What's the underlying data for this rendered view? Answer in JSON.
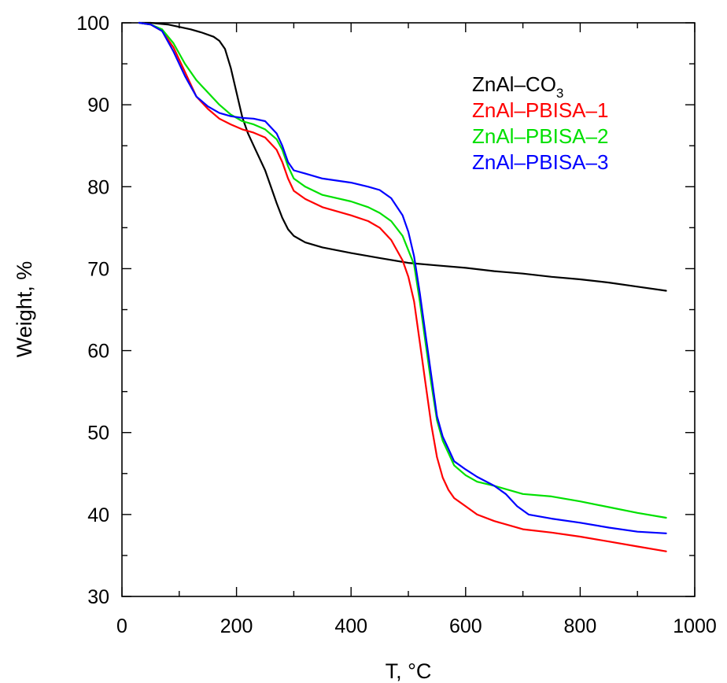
{
  "chart_data": {
    "type": "line",
    "title": "",
    "xlabel": "T, °C",
    "ylabel": "Weight, %",
    "xlim": [
      0,
      1000
    ],
    "ylim": [
      30,
      100
    ],
    "x_ticks": [
      0,
      200,
      400,
      600,
      800,
      1000
    ],
    "y_ticks": [
      30,
      40,
      50,
      60,
      70,
      80,
      90,
      100
    ],
    "x_tick_labels": [
      "0",
      "200",
      "400",
      "600",
      "800",
      "1000"
    ],
    "y_tick_labels": [
      "30",
      "40",
      "50",
      "60",
      "70",
      "80",
      "90",
      "100"
    ],
    "grid": false,
    "legend_position": "top-right",
    "series": [
      {
        "name": "ZnAl–CO3",
        "legend_main": "ZnAl–CO",
        "legend_sub": "3",
        "color": "#000000",
        "points": [
          [
            30,
            100
          ],
          [
            50,
            100
          ],
          [
            80,
            99.8
          ],
          [
            100,
            99.5
          ],
          [
            120,
            99.2
          ],
          [
            140,
            98.8
          ],
          [
            160,
            98.3
          ],
          [
            170,
            97.8
          ],
          [
            180,
            96.8
          ],
          [
            190,
            94.5
          ],
          [
            200,
            91.5
          ],
          [
            210,
            88.5
          ],
          [
            220,
            86.5
          ],
          [
            230,
            85
          ],
          [
            240,
            83.5
          ],
          [
            250,
            82
          ],
          [
            260,
            80
          ],
          [
            270,
            78
          ],
          [
            280,
            76.2
          ],
          [
            290,
            74.8
          ],
          [
            300,
            74
          ],
          [
            320,
            73.2
          ],
          [
            350,
            72.6
          ],
          [
            400,
            71.9
          ],
          [
            450,
            71.3
          ],
          [
            500,
            70.7
          ],
          [
            550,
            70.4
          ],
          [
            600,
            70.1
          ],
          [
            650,
            69.7
          ],
          [
            700,
            69.4
          ],
          [
            750,
            69
          ],
          [
            800,
            68.7
          ],
          [
            850,
            68.3
          ],
          [
            900,
            67.8
          ],
          [
            950,
            67.3
          ]
        ]
      },
      {
        "name": "ZnAl–PBISA–1",
        "color": "#ff0000",
        "points": [
          [
            30,
            100
          ],
          [
            50,
            99.8
          ],
          [
            70,
            99
          ],
          [
            90,
            97
          ],
          [
            110,
            94
          ],
          [
            130,
            91
          ],
          [
            150,
            89.5
          ],
          [
            170,
            88.3
          ],
          [
            190,
            87.6
          ],
          [
            210,
            87
          ],
          [
            230,
            86.6
          ],
          [
            250,
            86
          ],
          [
            270,
            84.5
          ],
          [
            280,
            83
          ],
          [
            290,
            81
          ],
          [
            300,
            79.5
          ],
          [
            320,
            78.5
          ],
          [
            350,
            77.5
          ],
          [
            400,
            76.5
          ],
          [
            430,
            75.8
          ],
          [
            450,
            75
          ],
          [
            470,
            73.5
          ],
          [
            490,
            71
          ],
          [
            500,
            69
          ],
          [
            510,
            66
          ],
          [
            520,
            61
          ],
          [
            530,
            56
          ],
          [
            540,
            51
          ],
          [
            550,
            47
          ],
          [
            560,
            44.5
          ],
          [
            570,
            43
          ],
          [
            580,
            42
          ],
          [
            600,
            41
          ],
          [
            620,
            40
          ],
          [
            650,
            39.2
          ],
          [
            700,
            38.2
          ],
          [
            750,
            37.8
          ],
          [
            800,
            37.3
          ],
          [
            850,
            36.7
          ],
          [
            900,
            36.1
          ],
          [
            950,
            35.5
          ]
        ]
      },
      {
        "name": "ZnAl–PBISA–2",
        "color": "#00e000",
        "points": [
          [
            30,
            100
          ],
          [
            50,
            99.8
          ],
          [
            70,
            99.2
          ],
          [
            90,
            97.5
          ],
          [
            110,
            95
          ],
          [
            130,
            93
          ],
          [
            150,
            91.5
          ],
          [
            170,
            90
          ],
          [
            190,
            88.8
          ],
          [
            210,
            88
          ],
          [
            230,
            87.6
          ],
          [
            250,
            87
          ],
          [
            270,
            85.8
          ],
          [
            280,
            84.5
          ],
          [
            290,
            82.5
          ],
          [
            300,
            81
          ],
          [
            320,
            80
          ],
          [
            350,
            79
          ],
          [
            400,
            78.2
          ],
          [
            430,
            77.5
          ],
          [
            450,
            76.8
          ],
          [
            470,
            75.8
          ],
          [
            490,
            74
          ],
          [
            510,
            70.5
          ],
          [
            520,
            66
          ],
          [
            530,
            61
          ],
          [
            540,
            56
          ],
          [
            550,
            51.5
          ],
          [
            560,
            49
          ],
          [
            570,
            47.5
          ],
          [
            580,
            46
          ],
          [
            600,
            44.8
          ],
          [
            620,
            44
          ],
          [
            650,
            43.5
          ],
          [
            700,
            42.5
          ],
          [
            750,
            42.2
          ],
          [
            800,
            41.6
          ],
          [
            850,
            40.9
          ],
          [
            900,
            40.2
          ],
          [
            950,
            39.6
          ]
        ]
      },
      {
        "name": "ZnAl–PBISA–3",
        "color": "#0000ff",
        "points": [
          [
            30,
            100
          ],
          [
            50,
            99.8
          ],
          [
            70,
            99
          ],
          [
            90,
            96.5
          ],
          [
            110,
            93.5
          ],
          [
            130,
            91
          ],
          [
            150,
            89.8
          ],
          [
            170,
            89
          ],
          [
            190,
            88.6
          ],
          [
            210,
            88.4
          ],
          [
            230,
            88.3
          ],
          [
            250,
            88
          ],
          [
            270,
            86.5
          ],
          [
            280,
            85
          ],
          [
            290,
            83
          ],
          [
            300,
            82
          ],
          [
            320,
            81.6
          ],
          [
            350,
            81
          ],
          [
            400,
            80.5
          ],
          [
            430,
            80
          ],
          [
            450,
            79.6
          ],
          [
            470,
            78.6
          ],
          [
            490,
            76.5
          ],
          [
            500,
            74.5
          ],
          [
            510,
            71.5
          ],
          [
            520,
            67
          ],
          [
            530,
            62
          ],
          [
            540,
            57
          ],
          [
            550,
            52
          ],
          [
            560,
            49.5
          ],
          [
            570,
            48
          ],
          [
            580,
            46.5
          ],
          [
            600,
            45.5
          ],
          [
            620,
            44.6
          ],
          [
            650,
            43.5
          ],
          [
            670,
            42.5
          ],
          [
            690,
            41
          ],
          [
            710,
            40
          ],
          [
            750,
            39.5
          ],
          [
            800,
            39
          ],
          [
            850,
            38.4
          ],
          [
            900,
            37.9
          ],
          [
            950,
            37.7
          ]
        ]
      }
    ]
  }
}
